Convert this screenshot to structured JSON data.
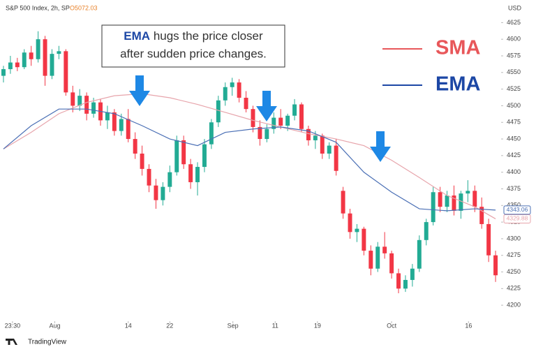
{
  "chart_data": {
    "type": "candlestick",
    "header": "S&P 500 Index, 2h, SP",
    "header_value": "O5072.03",
    "currency": "USD",
    "footer": "TradingView",
    "annotation": [
      "EMA",
      "hugs the price closer",
      "after sudden price changes."
    ],
    "ylim": [
      4176,
      4659
    ],
    "yticks": [
      4200,
      4225,
      4250,
      4275,
      4300,
      4325,
      4350,
      4375,
      4400,
      4425,
      4450,
      4475,
      4500,
      4525,
      4550,
      4575,
      4600,
      4625
    ],
    "xlim": [
      -0.5,
      71.8
    ],
    "xticks": [
      {
        "value": 1.3,
        "label": "23:30"
      },
      {
        "value": 7.4,
        "label": "Aug"
      },
      {
        "value": 18,
        "label": "14"
      },
      {
        "value": 24,
        "label": "22"
      },
      {
        "value": 33.1,
        "label": "Sep"
      },
      {
        "value": 39.2,
        "label": "11"
      },
      {
        "value": 45.3,
        "label": "19"
      },
      {
        "value": 56,
        "label": "Oct"
      },
      {
        "value": 67.1,
        "label": "16"
      }
    ],
    "up_color": "#22ab94",
    "down_color": "#f23645",
    "open": [
      4545,
      4555,
      4565,
      4558,
      4580,
      4570,
      4600,
      4545,
      4578,
      4582,
      4520,
      4500,
      4515,
      4488,
      4505,
      4478,
      4490,
      4462,
      4480,
      4450,
      4428,
      4405,
      4380,
      4358,
      4378,
      4400,
      4448,
      4412,
      4385,
      4408,
      4442,
      4475,
      4508,
      4528,
      4535,
      4512,
      4495,
      4468,
      4450,
      4465,
      4482,
      4470,
      4485,
      4502,
      4465,
      4448,
      4455,
      4428,
      4440,
      4372,
      4338,
      4310,
      4315,
      4282,
      4255,
      4288,
      4278,
      4248,
      4225,
      4238,
      4255,
      4298,
      4325,
      4370,
      4348,
      4365,
      4342,
      4368,
      4372,
      4348,
      4322,
      4275
    ],
    "high": [
      4560,
      4575,
      4572,
      4585,
      4590,
      4612,
      4605,
      4585,
      4590,
      4585,
      4530,
      4525,
      4520,
      4512,
      4510,
      4500,
      4495,
      4488,
      4495,
      4460,
      4440,
      4412,
      4390,
      4385,
      4410,
      4455,
      4455,
      4420,
      4415,
      4450,
      4480,
      4515,
      4535,
      4542,
      4540,
      4522,
      4500,
      4478,
      4472,
      4490,
      4495,
      4488,
      4510,
      4505,
      4470,
      4462,
      4458,
      4445,
      4450,
      4378,
      4345,
      4322,
      4318,
      4290,
      4295,
      4310,
      4282,
      4255,
      4245,
      4262,
      4305,
      4330,
      4378,
      4378,
      4372,
      4380,
      4372,
      4388,
      4380,
      4362,
      4330,
      4282
    ],
    "low": [
      4535,
      4548,
      4552,
      4555,
      4560,
      4565,
      4530,
      4540,
      4570,
      4515,
      4490,
      4492,
      4478,
      4482,
      4470,
      4465,
      4455,
      4455,
      4445,
      4420,
      4395,
      4370,
      4345,
      4350,
      4370,
      4395,
      4405,
      4375,
      4365,
      4400,
      4435,
      4468,
      4500,
      4515,
      4505,
      4490,
      4460,
      4440,
      4445,
      4458,
      4465,
      4462,
      4478,
      4460,
      4440,
      4435,
      4420,
      4420,
      4395,
      4330,
      4300,
      4295,
      4275,
      4245,
      4250,
      4270,
      4240,
      4218,
      4220,
      4228,
      4250,
      4290,
      4320,
      4340,
      4340,
      4335,
      4330,
      4355,
      4340,
      4315,
      4265,
      4235
    ],
    "close": [
      4555,
      4565,
      4558,
      4580,
      4570,
      4600,
      4545,
      4578,
      4582,
      4520,
      4500,
      4515,
      4488,
      4505,
      4478,
      4490,
      4462,
      4480,
      4450,
      4428,
      4405,
      4380,
      4358,
      4378,
      4400,
      4448,
      4412,
      4385,
      4408,
      4442,
      4475,
      4508,
      4528,
      4535,
      4512,
      4495,
      4468,
      4450,
      4465,
      4482,
      4470,
      4485,
      4502,
      4465,
      4448,
      4455,
      4428,
      4440,
      4402,
      4338,
      4310,
      4315,
      4282,
      4255,
      4288,
      4278,
      4248,
      4225,
      4238,
      4255,
      4298,
      4325,
      4370,
      4348,
      4365,
      4342,
      4368,
      4372,
      4348,
      4322,
      4275,
      4245
    ],
    "lines": [
      {
        "name": "SMA",
        "color": "#e8575a",
        "line_color": "#e7a4ab",
        "x": [
          0,
          4,
          8,
          12,
          16,
          20,
          24,
          28,
          32,
          36,
          40,
          44,
          48,
          52,
          56,
          60,
          64,
          68,
          71
        ],
        "values": [
          4435,
          4460,
          4488,
          4505,
          4515,
          4518,
          4512,
          4502,
          4490,
          4478,
          4468,
          4458,
          4450,
          4440,
          4418,
          4392,
          4365,
          4348,
          4329.88
        ],
        "last": 4329.88
      },
      {
        "name": "EMA",
        "color": "#1c47a5",
        "line_color": "#4a6fb5",
        "x": [
          0,
          4,
          8,
          12,
          16,
          20,
          24,
          28,
          32,
          36,
          40,
          44,
          48,
          52,
          56,
          60,
          64,
          68,
          71
        ],
        "values": [
          4435,
          4470,
          4495,
          4495,
          4488,
          4470,
          4450,
          4440,
          4460,
          4465,
          4468,
          4462,
          4445,
          4400,
          4370,
          4345,
          4342,
          4345,
          4343.06
        ],
        "last": 4343.06
      }
    ]
  }
}
